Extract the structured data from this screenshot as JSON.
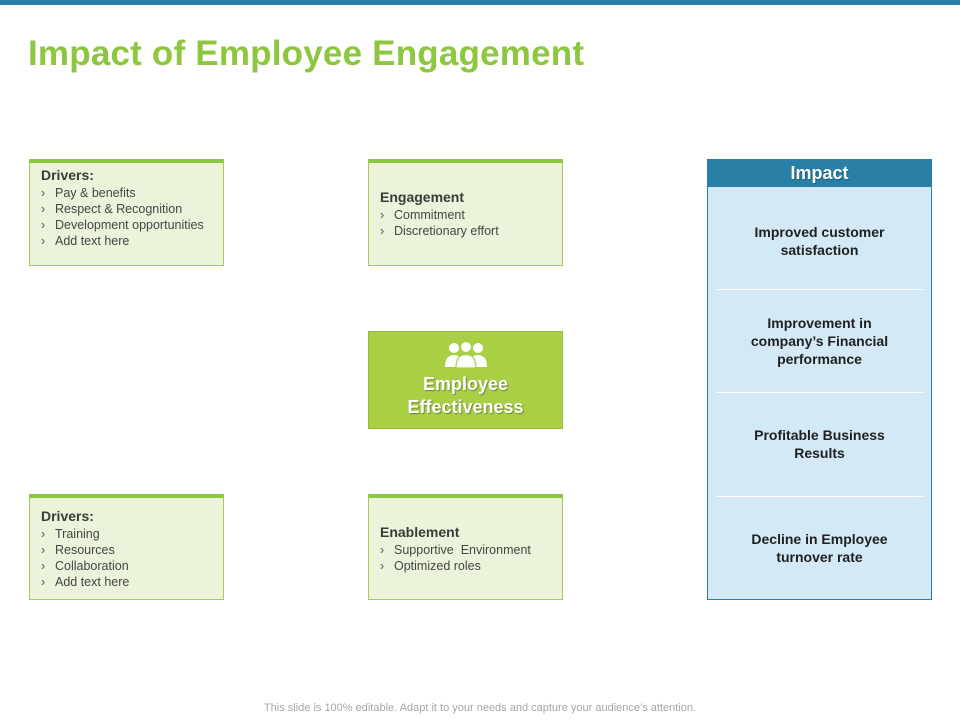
{
  "slide": {
    "title": "Impact of Employee Engagement",
    "footer": "This slide is 100% editable. Adapt it to your needs and capture your audience’s attention."
  },
  "colors": {
    "accent_green": "#8dc63f",
    "center_green": "#a9cf45",
    "card_fill": "#ebf4da",
    "impact_blue": "#2a7fa6",
    "impact_fill": "#d3e9f5"
  },
  "cards": {
    "drivers_top": {
      "title": "Drivers:",
      "items": [
        "Pay & benefits",
        "Respect & Recognition",
        "Development opportunities",
        "Add text here"
      ]
    },
    "engagement": {
      "title": "Engagement",
      "items": [
        "Commitment",
        "Discretionary effort"
      ]
    },
    "drivers_bottom": {
      "title": "Drivers:",
      "items": [
        "Training",
        "Resources",
        "Collaboration",
        "Add text here"
      ]
    },
    "enablement": {
      "title": "Enablement",
      "items": [
        "Supportive  Environment",
        "Optimized roles"
      ]
    }
  },
  "center": {
    "icon": "people-group-icon",
    "line1": "Employee",
    "line2": "Effectiveness"
  },
  "impact": {
    "header": "Impact",
    "items": [
      "Improved customer satisfaction",
      "Improvement in company’s  Financial performance",
      "Profitable Business Results",
      "Decline in Employee turnover rate"
    ]
  },
  "bullet_glyph": "›"
}
